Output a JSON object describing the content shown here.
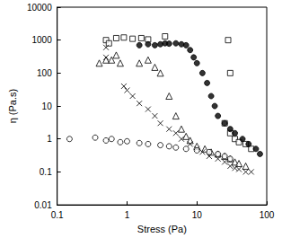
{
  "chart_data": {
    "type": "scatter",
    "xlabel": "Stress (Pa)",
    "ylabel": "η (Pa.s)",
    "log": true,
    "grid": false,
    "xlim": [
      0.1,
      100
    ],
    "ylim": [
      0.01,
      10000
    ],
    "xticks": [
      0.1,
      1,
      10,
      100
    ],
    "yticks": [
      0.01,
      0.1,
      1,
      10,
      100,
      1000,
      10000
    ],
    "series": [
      {
        "marker": "open-square",
        "color": "#000000",
        "x": [
          0.5,
          0.55,
          0.7,
          0.9,
          1.2,
          1.6,
          2,
          3.5,
          28,
          30,
          25,
          30,
          35,
          40,
          50,
          60
        ],
        "values": [
          1000,
          800,
          1150,
          1200,
          1100,
          1150,
          1050,
          1300,
          1000,
          100,
          3,
          1.5,
          1,
          0.8,
          0.7,
          0.5
        ]
      },
      {
        "marker": "filled-circle",
        "color": "#000000",
        "x": [
          1.5,
          2,
          2.5,
          3,
          3.5,
          4,
          5,
          6,
          7,
          8,
          9,
          10,
          12,
          14,
          16,
          18,
          20,
          25,
          30,
          35,
          45,
          55,
          70,
          80
        ],
        "values": [
          700,
          750,
          700,
          750,
          800,
          780,
          800,
          750,
          700,
          500,
          300,
          200,
          100,
          50,
          20,
          10,
          5,
          3,
          2,
          1.5,
          1,
          0.7,
          0.5,
          0.35
        ]
      },
      {
        "marker": "open-triangle",
        "color": "#000000",
        "x": [
          0.4,
          0.5,
          0.6,
          0.7,
          0.8,
          1.5,
          2,
          2.5,
          3,
          4,
          5,
          6,
          7,
          8,
          10,
          13,
          16,
          20,
          25,
          30,
          35,
          40,
          50
        ],
        "values": [
          200,
          250,
          250,
          350,
          200,
          200,
          250,
          150,
          100,
          20,
          5,
          2,
          1.2,
          0.9,
          0.6,
          0.5,
          0.4,
          0.35,
          0.3,
          0.25,
          0.2,
          0.18,
          0.15
        ]
      },
      {
        "marker": "x",
        "color": "#000000",
        "x": [
          0.5,
          0.5,
          0.9,
          1,
          1.2,
          1.5,
          2,
          2.5,
          3,
          4,
          5,
          6,
          8,
          10,
          12,
          15,
          20,
          25,
          30,
          35,
          40,
          50,
          60
        ],
        "values": [
          600,
          300,
          40,
          30,
          20,
          12,
          8,
          5,
          3,
          2,
          1.5,
          1,
          0.7,
          0.5,
          0.4,
          0.3,
          0.25,
          0.2,
          0.15,
          0.13,
          0.12,
          0.1,
          0.1
        ]
      },
      {
        "marker": "open-circle",
        "color": "#000000",
        "x": [
          0.15,
          0.35,
          0.5,
          0.6,
          0.8,
          1,
          1.5,
          2,
          3,
          4,
          5,
          7,
          10,
          15,
          20,
          25,
          30
        ],
        "values": [
          1,
          1.1,
          0.9,
          1,
          0.8,
          0.85,
          0.75,
          0.7,
          0.65,
          0.6,
          0.55,
          0.5,
          0.45,
          0.4,
          0.35,
          0.3,
          0.25
        ]
      }
    ]
  }
}
